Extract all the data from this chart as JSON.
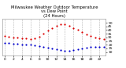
{
  "title": "Milwaukee Weather Outdoor Temperature\nvs Dew Point\n(24 Hours)",
  "title_fontsize": 3.8,
  "background_color": "#ffffff",
  "plot_bg_color": "#ffffff",
  "grid_color": "#aaaaaa",
  "text_color": "#000000",
  "spine_color": "#888888",
  "hours": [
    0,
    1,
    2,
    3,
    4,
    5,
    6,
    7,
    8,
    9,
    10,
    11,
    12,
    13,
    14,
    15,
    16,
    17,
    18,
    19,
    20,
    21,
    22,
    23
  ],
  "temp": [
    32,
    31,
    30,
    30,
    29,
    29,
    28,
    29,
    31,
    35,
    39,
    43,
    46,
    48,
    48,
    46,
    43,
    40,
    37,
    34,
    32,
    30,
    29,
    28
  ],
  "dew": [
    22,
    22,
    21,
    21,
    20,
    20,
    20,
    19,
    18,
    17,
    16,
    15,
    14,
    13,
    12,
    12,
    13,
    14,
    15,
    16,
    17,
    17,
    17,
    17
  ],
  "temp_color": "#dd0000",
  "dew_color": "#0000cc",
  "black_color": "#000000",
  "marker_size": 2.5,
  "xlim": [
    -0.5,
    23.5
  ],
  "ylim": [
    5,
    55
  ],
  "yticks": [
    10,
    15,
    20,
    25,
    30,
    35,
    40,
    45,
    50
  ],
  "xticks": [
    0,
    2,
    4,
    6,
    8,
    10,
    12,
    14,
    16,
    18,
    20,
    22
  ],
  "ylabel_fontsize": 3.2,
  "xlabel_fontsize": 3.2,
  "title_color": "#000000"
}
